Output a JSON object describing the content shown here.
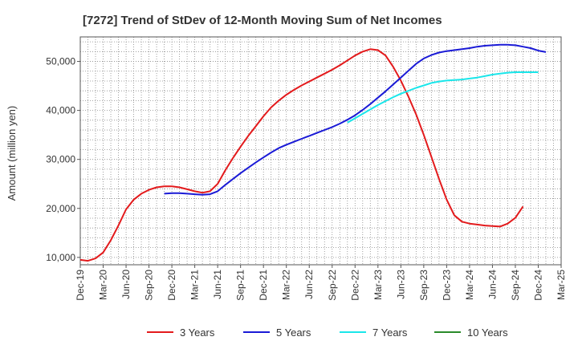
{
  "chart_data": {
    "type": "line",
    "title": "[7272]  Trend of StDev of 12-Month Moving Sum of Net Incomes",
    "ylabel": "Amount (million yen)",
    "xlabel": "",
    "ylim": [
      8500,
      55000
    ],
    "yticks": [
      10000,
      20000,
      30000,
      40000,
      50000
    ],
    "ytick_labels": [
      "10,000",
      "20,000",
      "30,000",
      "40,000",
      "50,000"
    ],
    "xticks": [
      "Dec-19",
      "Mar-20",
      "Jun-20",
      "Sep-20",
      "Dec-20",
      "Mar-21",
      "Jun-21",
      "Sep-21",
      "Dec-21",
      "Mar-22",
      "Jun-22",
      "Sep-22",
      "Dec-22",
      "Mar-23",
      "Jun-23",
      "Sep-23",
      "Dec-23",
      "Mar-24",
      "Jun-24",
      "Sep-24",
      "Dec-24",
      "Mar-25"
    ],
    "grid": true,
    "legend_position": "bottom",
    "series": [
      {
        "name": "3 Years",
        "color": "#e31a1c",
        "start": "Dec-19",
        "values": [
          9500,
          9300,
          9800,
          11000,
          13500,
          16500,
          19800,
          21800,
          23000,
          23800,
          24300,
          24500,
          24500,
          24300,
          23900,
          23500,
          23200,
          23500,
          25000,
          27800,
          30300,
          32600,
          34800,
          36800,
          38800,
          40600,
          42000,
          43200,
          44200,
          45100,
          45900,
          46700,
          47500,
          48300,
          49200,
          50200,
          51200,
          52000,
          52500,
          52300,
          51200,
          48900,
          46100,
          42800,
          39200,
          35000,
          30500,
          26000,
          21800,
          18600,
          17300,
          16900,
          16700,
          16500,
          16400,
          16300,
          16900,
          18100,
          20400
        ]
      },
      {
        "name": "5 Years",
        "color": "#1a1ad6",
        "start": "Nov-20",
        "values": [
          23000,
          23100,
          23100,
          23000,
          22900,
          22800,
          22900,
          23500,
          24800,
          26000,
          27200,
          28300,
          29400,
          30400,
          31400,
          32300,
          33000,
          33600,
          34200,
          34800,
          35400,
          36000,
          36600,
          37300,
          38100,
          39000,
          40100,
          41300,
          42600,
          43900,
          45300,
          46700,
          48100,
          49500,
          50600,
          51300,
          51800,
          52100,
          52300,
          52500,
          52700,
          53000,
          53200,
          53300,
          53400,
          53400,
          53300,
          53000,
          52700,
          52200,
          51900
        ]
      },
      {
        "name": "7 Years",
        "color": "#1ae6ea",
        "start": "Nov-22",
        "values": [
          37500,
          38400,
          39300,
          40200,
          41100,
          41900,
          42700,
          43400,
          44000,
          44600,
          45100,
          45600,
          45900,
          46100,
          46200,
          46300,
          46500,
          46700,
          47000,
          47300,
          47500,
          47700,
          47800,
          47800,
          47800,
          47800
        ]
      },
      {
        "name": "10 Years",
        "color": "#2a8a2a",
        "start": "",
        "values": []
      }
    ]
  }
}
